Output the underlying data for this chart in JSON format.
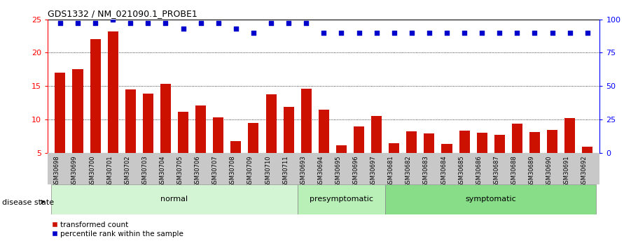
{
  "title": "GDS1332 / NM_021090.1_PROBE1",
  "categories": [
    "GSM30698",
    "GSM30699",
    "GSM30700",
    "GSM30701",
    "GSM30702",
    "GSM30703",
    "GSM30704",
    "GSM30705",
    "GSM30706",
    "GSM30707",
    "GSM30708",
    "GSM30709",
    "GSM30710",
    "GSM30711",
    "GSM30693",
    "GSM30694",
    "GSM30695",
    "GSM30696",
    "GSM30697",
    "GSM30681",
    "GSM30682",
    "GSM30683",
    "GSM30684",
    "GSM30685",
    "GSM30686",
    "GSM30687",
    "GSM30688",
    "GSM30689",
    "GSM30690",
    "GSM30691",
    "GSM30692"
  ],
  "bar_values": [
    17.0,
    17.5,
    22.0,
    23.2,
    14.5,
    13.9,
    15.3,
    11.2,
    12.1,
    10.3,
    6.8,
    9.5,
    13.8,
    11.9,
    14.6,
    11.5,
    6.2,
    9.0,
    10.5,
    6.5,
    8.2,
    7.9,
    6.4,
    8.3,
    8.0,
    7.7,
    9.4,
    8.1,
    8.5,
    10.2,
    6.0
  ],
  "percentile_values": [
    97,
    97,
    97,
    100,
    97,
    97,
    97,
    93,
    97,
    97,
    93,
    90,
    97,
    97,
    97,
    90,
    90,
    90,
    90,
    90,
    90,
    90,
    90,
    90,
    90,
    90,
    90,
    90,
    90,
    90,
    90
  ],
  "group_labels": [
    "normal",
    "presymptomatic",
    "symptomatic"
  ],
  "group_sizes": [
    14,
    5,
    12
  ],
  "group_colors_light": [
    "#d4f5d4",
    "#b8f0b8",
    "#88dd88"
  ],
  "bar_color": "#cc1100",
  "dot_color": "#0000cc",
  "ylim_left": [
    5,
    25
  ],
  "ylim_right": [
    0,
    100
  ],
  "yticks_left": [
    5,
    10,
    15,
    20,
    25
  ],
  "yticks_right": [
    0,
    25,
    50,
    75,
    100
  ],
  "grid_values": [
    10,
    15,
    20
  ],
  "legend_items": [
    "transformed count",
    "percentile rank within the sample"
  ],
  "disease_state_label": "disease state"
}
